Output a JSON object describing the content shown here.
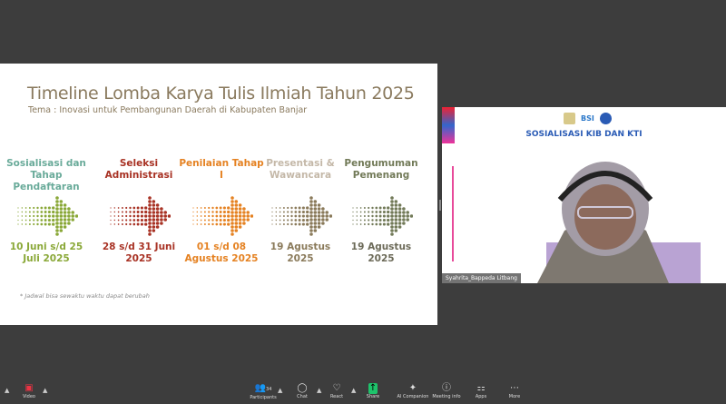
{
  "slide": {
    "title": "Timeline Lomba Karya Tulis Ilmiah Tahun 2025",
    "subtitle": "Tema : Inovasi untuk Pembangunan Daerah di Kabupaten Banjar",
    "steps": [
      {
        "label": "Sosialisasi dan Tahap Pendaftaran",
        "date": "10 Juni s/d 25 Juli 2025",
        "label_color": "#6aab9a",
        "arrow_color": "#8aa838",
        "date_color": "#8aa838"
      },
      {
        "label": "Seleksi Administrasi",
        "date": "28 s/d 31 Juni 2025",
        "label_color": "#a83224",
        "arrow_color": "#a83224",
        "date_color": "#a83224"
      },
      {
        "label": "Penilaian Tahap I",
        "date": "01 s/d 08 Agustus 2025",
        "label_color": "#e58222",
        "arrow_color": "#e58222",
        "date_color": "#e58222"
      },
      {
        "label": "Presentasi & Wawancara",
        "date": "19 Agustus 2025",
        "label_color": "#c4b8a8",
        "arrow_color": "#8a7a5a",
        "date_color": "#8a7a5a"
      },
      {
        "label": "Pengumuman Pemenang",
        "date": "19 Agustus 2025",
        "label_color": "#727a58",
        "arrow_color": "#727a58",
        "date_color": "#6c6a58"
      }
    ],
    "note": "* Jadwal bisa sewaktu waktu dapat berubah"
  },
  "video": {
    "banner": "SOSIALISASI KIB DAN KTI",
    "logo_text": "BSI",
    "participant_name": "Syahrita_Bappeda Litbang"
  },
  "toolbar": {
    "left": [
      {
        "label": "Video",
        "icon": "video-off-icon"
      }
    ],
    "items": [
      {
        "label": "Participants",
        "icon": "participants-icon",
        "count": "34"
      },
      {
        "label": "Chat",
        "icon": "chat-icon"
      },
      {
        "label": "React",
        "icon": "heart-icon"
      },
      {
        "label": "Share",
        "icon": "share-icon"
      },
      {
        "label": "AI Companion",
        "icon": "sparkle-icon"
      },
      {
        "label": "Meeting info",
        "icon": "info-icon"
      },
      {
        "label": "Apps",
        "icon": "apps-icon"
      },
      {
        "label": "More",
        "icon": "more-icon"
      }
    ]
  }
}
